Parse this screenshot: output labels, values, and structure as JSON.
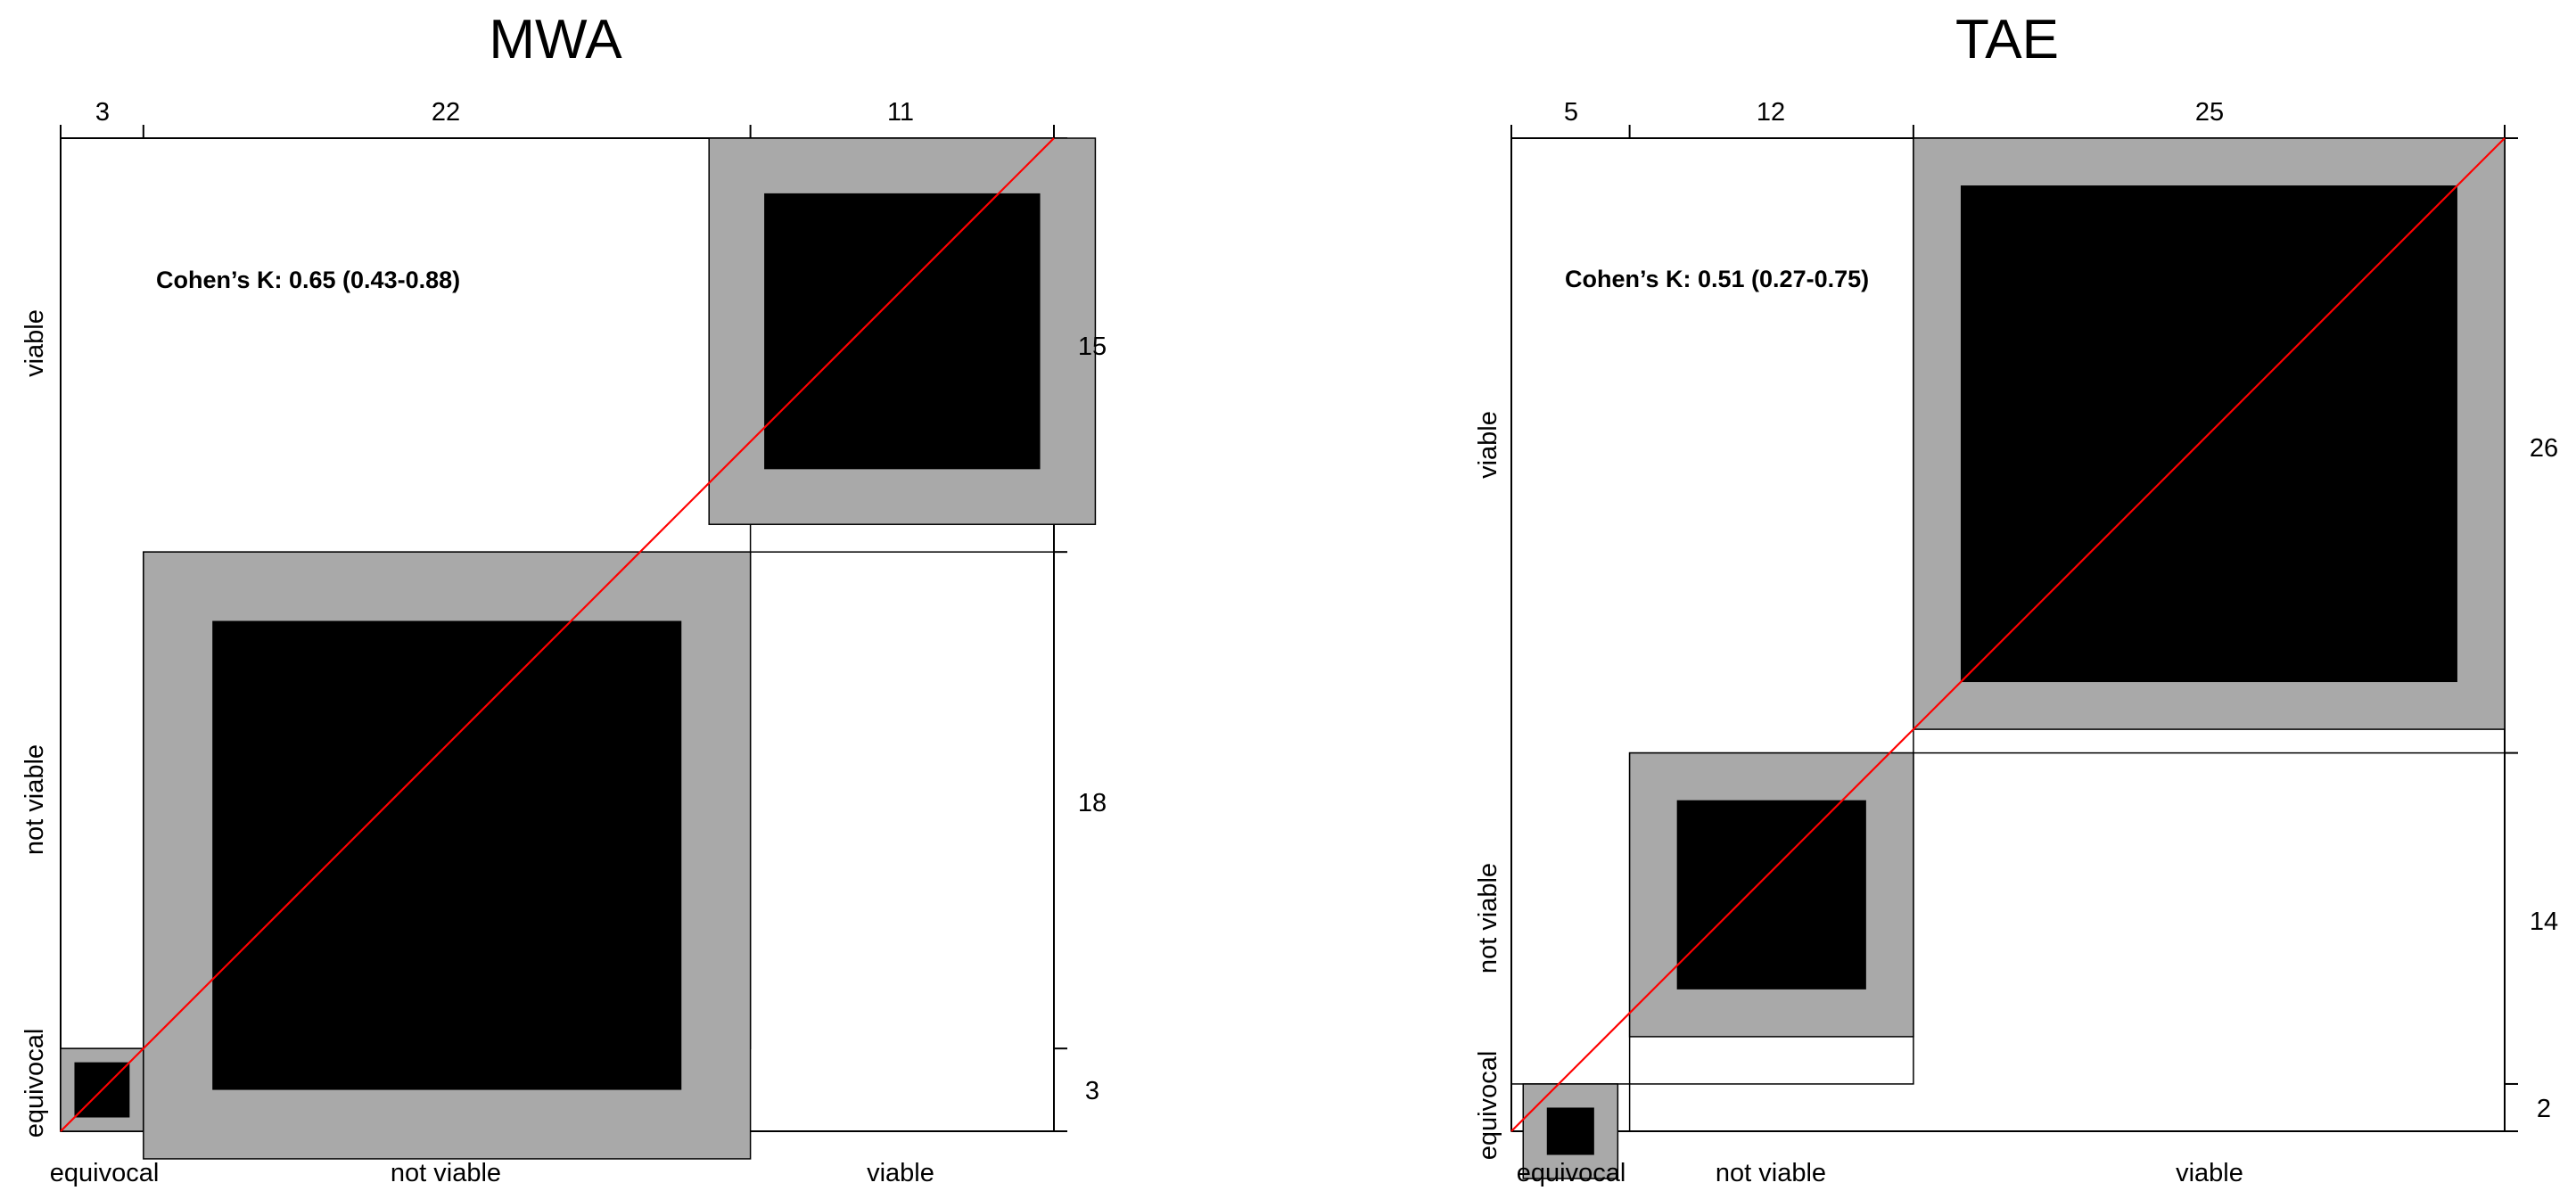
{
  "chart_data": [
    {
      "type": "agreement-chart",
      "title": "MWA",
      "categories": [
        "equivocal",
        "not viable",
        "viable"
      ],
      "col_totals": [
        3,
        22,
        11
      ],
      "row_totals": [
        3,
        18,
        15
      ],
      "col_totals_labels": [
        "3",
        "22",
        "11"
      ],
      "row_totals_labels": [
        "3",
        "18",
        "15"
      ],
      "diagonal_exact": [
        2,
        17,
        10
      ],
      "diagonal_partial": [
        3,
        22,
        14
      ],
      "annotation": "Cohen’s K: 0.65 (0.43-0.88)"
    },
    {
      "type": "agreement-chart",
      "title": "TAE",
      "categories": [
        "equivocal",
        "not viable",
        "viable"
      ],
      "col_totals": [
        5,
        12,
        25
      ],
      "row_totals": [
        2,
        14,
        26
      ],
      "col_totals_labels": [
        "5",
        "12",
        "25"
      ],
      "row_totals_labels": [
        "2",
        "14",
        "26"
      ],
      "diagonal_exact": [
        2,
        8,
        21
      ],
      "diagonal_partial": [
        4,
        12,
        25
      ],
      "annotation": "Cohen’s K: 0.51 (0.27-0.75)"
    }
  ],
  "colors": {
    "exact": "#000000",
    "partial": "#a9a9a9",
    "diagonal_line": "#ff0000",
    "border": "#000000"
  }
}
